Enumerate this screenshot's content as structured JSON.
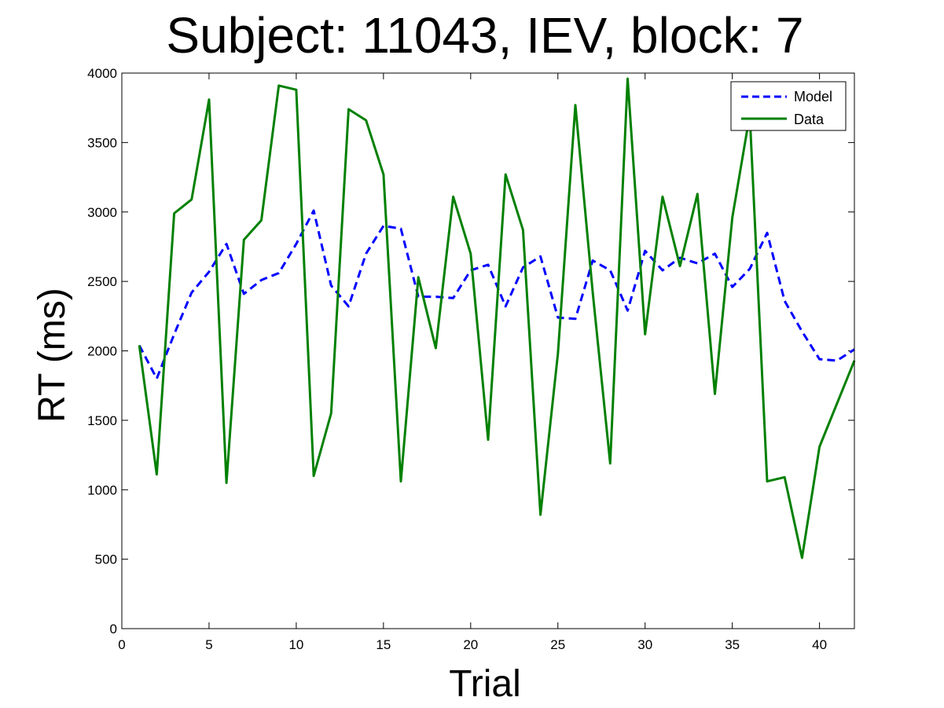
{
  "chart_data": {
    "type": "line",
    "title": "Subject: 11043, IEV, block: 7",
    "xlabel": "Trial",
    "ylabel": "RT (ms)",
    "xlim": [
      0,
      42
    ],
    "ylim": [
      0,
      4000
    ],
    "xticks": [
      0,
      5,
      10,
      15,
      20,
      25,
      30,
      35,
      40
    ],
    "yticks": [
      0,
      500,
      1000,
      1500,
      2000,
      2500,
      3000,
      3500,
      4000
    ],
    "grid": false,
    "legend_position": "top-right",
    "x": [
      1,
      2,
      3,
      4,
      5,
      6,
      7,
      8,
      9,
      10,
      11,
      12,
      13,
      14,
      15,
      16,
      17,
      18,
      19,
      20,
      21,
      22,
      23,
      24,
      25,
      26,
      27,
      28,
      29,
      30,
      31,
      32,
      33,
      34,
      35,
      36,
      37,
      38,
      39,
      40,
      41,
      42
    ],
    "series": [
      {
        "name": "Model",
        "color": "#0000ff",
        "style": "dashed",
        "values": [
          2040,
          1800,
          2120,
          2420,
          2570,
          2770,
          2410,
          2510,
          2560,
          2770,
          3010,
          2470,
          2320,
          2700,
          2900,
          2880,
          2390,
          2390,
          2380,
          2580,
          2620,
          2320,
          2600,
          2680,
          2240,
          2230,
          2650,
          2580,
          2290,
          2720,
          2580,
          2670,
          2630,
          2700,
          2460,
          2590,
          2850,
          2360,
          2140,
          1940,
          1930,
          2010
        ]
      },
      {
        "name": "Data",
        "color": "#008000",
        "style": "solid",
        "values": [
          2040,
          1110,
          2990,
          3090,
          3810,
          1050,
          2800,
          2940,
          3910,
          3880,
          1100,
          1550,
          3740,
          3660,
          3270,
          1060,
          2530,
          2020,
          3110,
          2700,
          1360,
          3270,
          2870,
          820,
          1980,
          3770,
          2420,
          1190,
          3960,
          2120,
          3110,
          2610,
          3130,
          1690,
          2960,
          3700,
          1060,
          1090,
          510,
          1310,
          1620,
          1930
        ]
      }
    ]
  }
}
